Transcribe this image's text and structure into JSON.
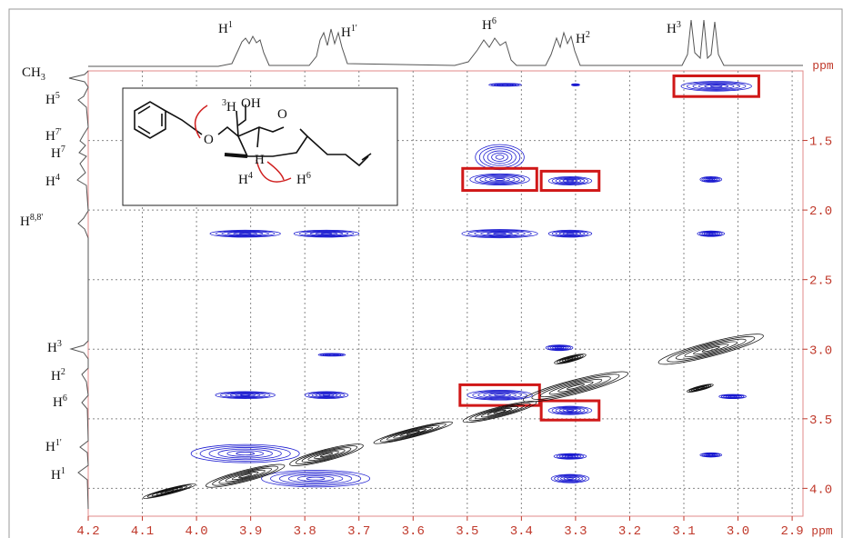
{
  "chart_data": {
    "type": "nmr2d",
    "x_axis_label": "ppm",
    "y_axis_label": "ppm",
    "xlim": [
      4.2,
      2.88
    ],
    "ylim": [
      1.0,
      4.2
    ],
    "xticks": [
      4.2,
      4.1,
      {
        "value": 4,
        "label": "4.0"
      },
      3.9,
      3.8,
      3.7,
      3.6,
      3.5,
      3.4,
      3.3,
      3.2,
      3.1,
      {
        "value": 3,
        "label": "3.0"
      },
      2.9
    ],
    "yticks": [
      1.5,
      {
        "value": 2,
        "label": "2.0"
      },
      2.5,
      {
        "value": 3,
        "label": "3.0"
      },
      3.5,
      {
        "value": 4,
        "label": "4.0"
      }
    ],
    "grid": true,
    "top_labels": [
      {
        "text": "H",
        "sup": "1"
      },
      {
        "text": "H",
        "sup": "1'"
      },
      {
        "text": "H",
        "sup": "6"
      },
      {
        "text": "H",
        "sup": "2"
      },
      {
        "text": "H",
        "sup": "3"
      }
    ],
    "left_labels": [
      {
        "text": "CH",
        "sub": "3"
      },
      {
        "text": "H",
        "sup": "5"
      },
      {
        "text": "H",
        "sup": "7'"
      },
      {
        "text": "H",
        "sup": "7"
      },
      {
        "text": "H",
        "sup": "4"
      },
      {
        "text": "H",
        "sup": "8,8'"
      },
      {
        "text": "H",
        "sup": "3"
      },
      {
        "text": "H",
        "sup": "2"
      },
      {
        "text": "H",
        "sup": "6"
      },
      {
        "text": "H",
        "sup": "1'"
      },
      {
        "text": "H",
        "sup": "1"
      }
    ],
    "structure_labels": [
      {
        "text": "O"
      },
      {
        "text": "H",
        "sup": "3"
      },
      {
        "text": "OH"
      },
      {
        "text": "O"
      },
      {
        "text": "H"
      },
      {
        "text": "H",
        "sup": "4"
      },
      {
        "text": "H",
        "sup": "6"
      }
    ],
    "series": [
      {
        "name": "NOE",
        "color": "#1a1ad0",
        "peaks": [
          {
            "x": 3.43,
            "y": 1.1,
            "w": 0.06,
            "h": 0.02
          },
          {
            "x": 3.3,
            "y": 1.1,
            "w": 0.015,
            "h": 0.015
          },
          {
            "x": 3.04,
            "y": 1.11,
            "w": 0.13,
            "h": 0.07
          },
          {
            "x": 3.44,
            "y": 1.62,
            "w": 0.09,
            "h": 0.18
          },
          {
            "x": 3.44,
            "y": 1.78,
            "w": 0.11,
            "h": 0.08
          },
          {
            "x": 3.31,
            "y": 1.79,
            "w": 0.08,
            "h": 0.06
          },
          {
            "x": 3.05,
            "y": 1.78,
            "w": 0.04,
            "h": 0.04
          },
          {
            "x": 3.91,
            "y": 2.17,
            "w": 0.13,
            "h": 0.05
          },
          {
            "x": 3.76,
            "y": 2.17,
            "w": 0.12,
            "h": 0.05
          },
          {
            "x": 3.44,
            "y": 2.17,
            "w": 0.14,
            "h": 0.06
          },
          {
            "x": 3.31,
            "y": 2.17,
            "w": 0.08,
            "h": 0.05
          },
          {
            "x": 3.05,
            "y": 2.17,
            "w": 0.05,
            "h": 0.04
          },
          {
            "x": 3.33,
            "y": 2.99,
            "w": 0.05,
            "h": 0.04
          },
          {
            "x": 3.75,
            "y": 3.04,
            "w": 0.05,
            "h": 0.02
          },
          {
            "x": 3.91,
            "y": 3.33,
            "w": 0.11,
            "h": 0.05
          },
          {
            "x": 3.76,
            "y": 3.33,
            "w": 0.08,
            "h": 0.05
          },
          {
            "x": 3.44,
            "y": 3.33,
            "w": 0.12,
            "h": 0.07
          },
          {
            "x": 3.31,
            "y": 3.44,
            "w": 0.08,
            "h": 0.06
          },
          {
            "x": 3.01,
            "y": 3.34,
            "w": 0.05,
            "h": 0.03
          },
          {
            "x": 3.91,
            "y": 3.75,
            "w": 0.2,
            "h": 0.13
          },
          {
            "x": 3.31,
            "y": 3.77,
            "w": 0.06,
            "h": 0.04
          },
          {
            "x": 3.05,
            "y": 3.76,
            "w": 0.04,
            "h": 0.03
          },
          {
            "x": 3.78,
            "y": 3.93,
            "w": 0.2,
            "h": 0.12
          },
          {
            "x": 3.31,
            "y": 3.93,
            "w": 0.07,
            "h": 0.06
          }
        ],
        "highlighted": [
          2,
          4,
          5,
          16,
          17
        ],
        "highlight_color": "#d01818"
      },
      {
        "name": "diagonal",
        "color": "#111111",
        "peaks": [
          {
            "x": 3.05,
            "y": 3.0,
            "w": 0.2,
            "h": 0.1
          },
          {
            "x": 3.31,
            "y": 3.07,
            "w": 0.06,
            "h": 0.04
          },
          {
            "x": 3.07,
            "y": 3.28,
            "w": 0.05,
            "h": 0.03
          },
          {
            "x": 3.3,
            "y": 3.27,
            "w": 0.2,
            "h": 0.1
          },
          {
            "x": 3.44,
            "y": 3.45,
            "w": 0.14,
            "h": 0.07
          },
          {
            "x": 3.6,
            "y": 3.6,
            "w": 0.15,
            "h": 0.06
          },
          {
            "x": 3.76,
            "y": 3.76,
            "w": 0.14,
            "h": 0.08
          },
          {
            "x": 3.91,
            "y": 3.91,
            "w": 0.15,
            "h": 0.08
          },
          {
            "x": 4.05,
            "y": 4.02,
            "w": 0.1,
            "h": 0.04
          }
        ]
      }
    ]
  }
}
